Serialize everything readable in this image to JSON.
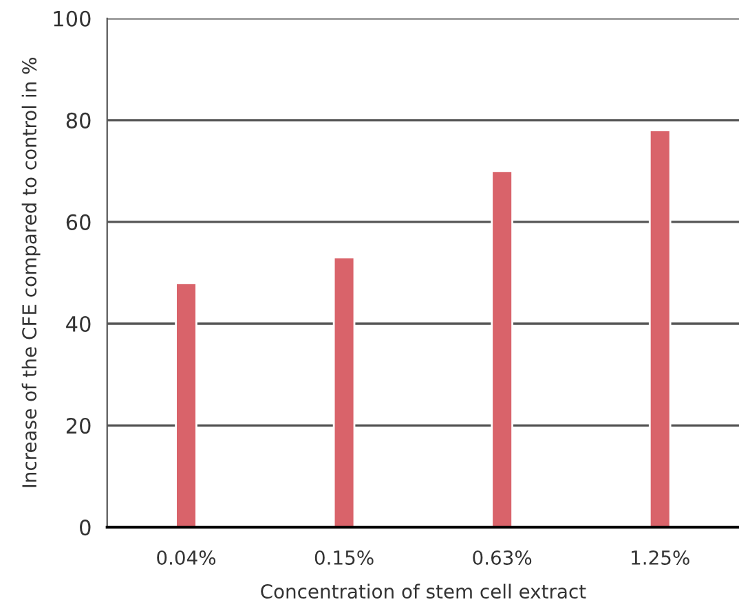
{
  "chart_data": {
    "type": "bar",
    "xlabel": "Concentration of stem cell extract",
    "ylabel": "Increase of the CFE compared to control in %",
    "categories": [
      "0.04%",
      "0.15%",
      "0.63%",
      "1.25%"
    ],
    "values": [
      48,
      53,
      70,
      78
    ],
    "color": "#d9636a",
    "ylim": [
      0,
      100
    ],
    "yticks": [
      0,
      20,
      40,
      60,
      80,
      100
    ],
    "grid": "y"
  }
}
